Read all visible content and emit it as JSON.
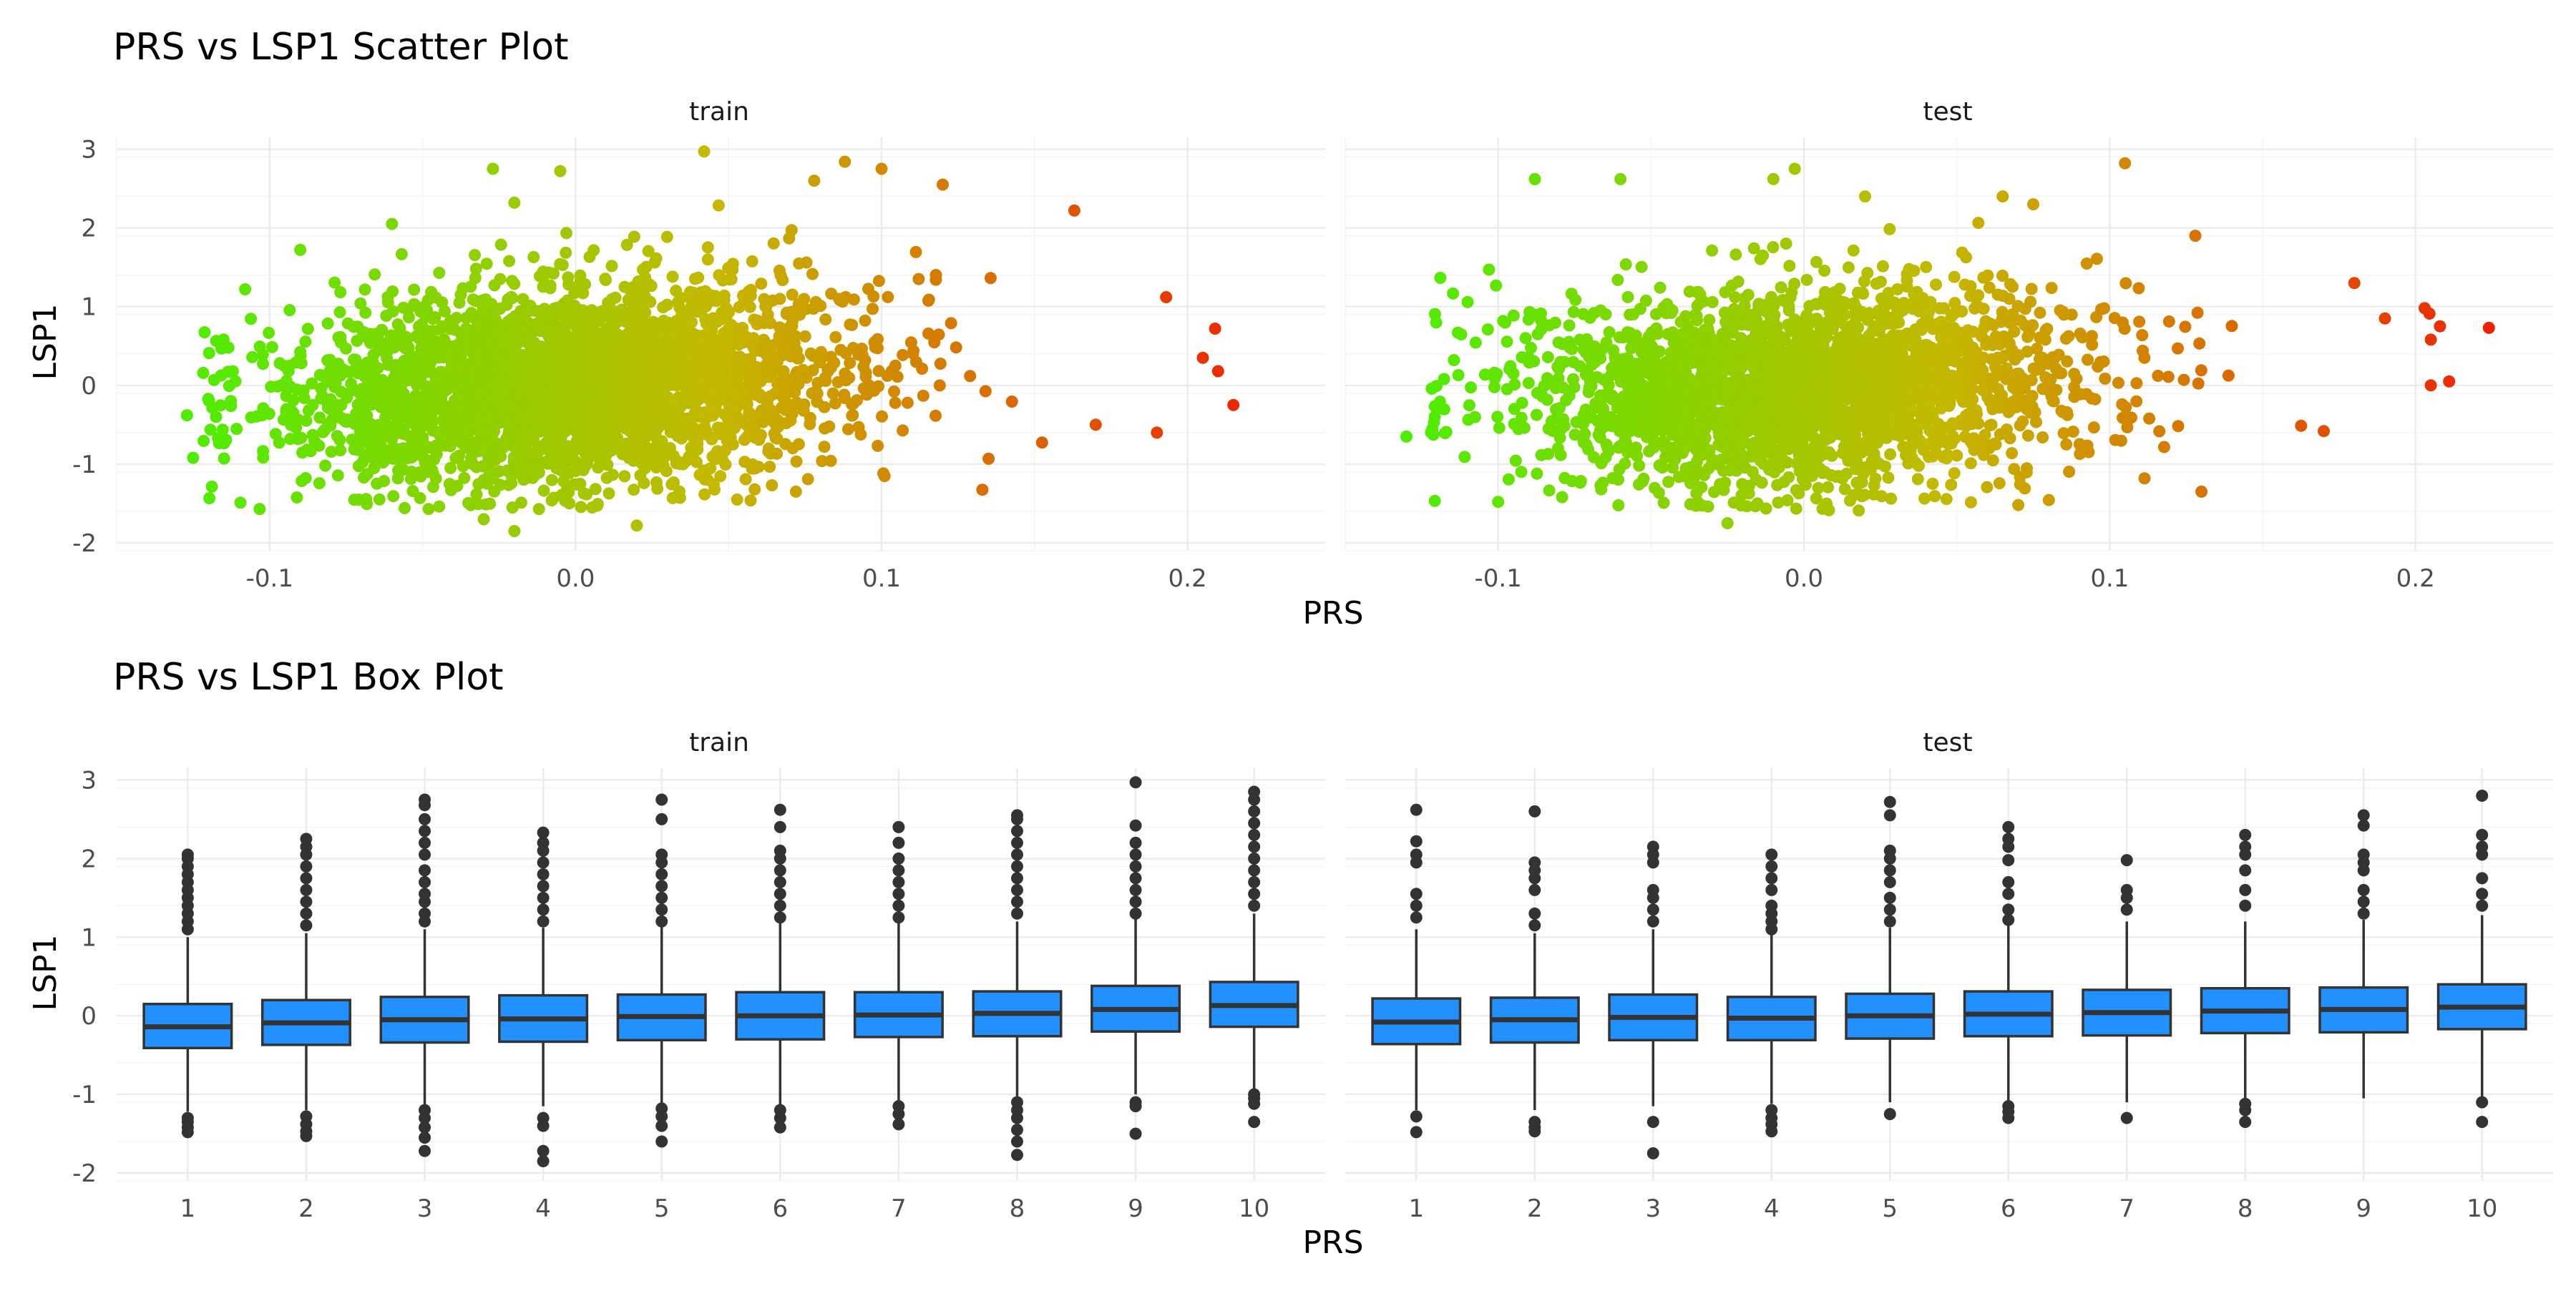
{
  "colors": {
    "low": "#4cee00",
    "mid": "#c4b800",
    "high": "#ee2200",
    "box_fill": "#2291ff",
    "box_line": "#333333",
    "outlier": "#333333"
  },
  "chart_data": [
    {
      "type": "scatter",
      "title": "PRS vs LSP1 Scatter Plot",
      "xlabel": "PRS",
      "ylabel": "LSP1",
      "facets": [
        "train",
        "test"
      ],
      "xlim": [
        -0.15,
        0.245
      ],
      "ylim": [
        -2.1,
        3.15
      ],
      "x_ticks": [
        -0.1,
        0.0,
        0.1,
        0.2
      ],
      "x_tick_labels": [
        "-0.1",
        "0.0",
        "0.1",
        "0.2"
      ],
      "y_ticks": [
        -2,
        -1,
        0,
        1,
        2,
        3
      ],
      "y_tick_labels": [
        "-2",
        "-1",
        "0",
        "1",
        "2",
        "3"
      ],
      "color_by": "x",
      "grid": true,
      "legend": "none",
      "series": [
        {
          "facet": "train",
          "x_center": 0.0,
          "x_sd": 0.045,
          "n_points": 3200,
          "trend_slope": 2.0,
          "y_sd": 0.55,
          "extremes": [
            [
              -0.127,
              -0.38
            ],
            [
              -0.125,
              -0.92
            ],
            [
              -0.108,
              1.22
            ],
            [
              -0.09,
              1.72
            ],
            [
              -0.06,
              2.05
            ],
            [
              -0.027,
              2.75
            ],
            [
              -0.005,
              2.72
            ],
            [
              0.042,
              2.97
            ],
            [
              0.078,
              2.6
            ],
            [
              0.088,
              2.84
            ],
            [
              0.1,
              2.75
            ],
            [
              0.12,
              2.55
            ],
            [
              0.163,
              2.22
            ],
            [
              0.193,
              1.12
            ],
            [
              0.209,
              0.72
            ],
            [
              0.21,
              0.18
            ],
            [
              0.215,
              -0.25
            ],
            [
              0.205,
              0.35
            ],
            [
              0.19,
              -0.6
            ],
            [
              0.17,
              -0.5
            ],
            [
              -0.02,
              -1.85
            ],
            [
              -0.03,
              -1.7
            ],
            [
              0.02,
              -1.78
            ],
            [
              0.072,
              -1.35
            ]
          ]
        },
        {
          "facet": "test",
          "x_center": 0.0,
          "x_sd": 0.045,
          "n_points": 2600,
          "trend_slope": 1.9,
          "y_sd": 0.55,
          "extremes": [
            [
              -0.13,
              -0.65
            ],
            [
              -0.113,
              0.13
            ],
            [
              -0.103,
              1.47
            ],
            [
              -0.1,
              -1.48
            ],
            [
              -0.088,
              2.62
            ],
            [
              -0.06,
              2.62
            ],
            [
              -0.01,
              2.62
            ],
            [
              -0.003,
              2.75
            ],
            [
              0.02,
              2.4
            ],
            [
              0.065,
              2.4
            ],
            [
              0.075,
              2.3
            ],
            [
              0.105,
              2.82
            ],
            [
              0.128,
              1.9
            ],
            [
              0.18,
              1.3
            ],
            [
              0.19,
              0.85
            ],
            [
              0.203,
              0.98
            ],
            [
              0.205,
              0.58
            ],
            [
              0.208,
              0.75
            ],
            [
              0.211,
              0.05
            ],
            [
              0.224,
              0.73
            ],
            [
              0.205,
              0.0
            ],
            [
              0.17,
              -0.58
            ],
            [
              0.13,
              -1.35
            ],
            [
              -0.025,
              -1.75
            ]
          ]
        }
      ]
    },
    {
      "type": "box",
      "title": "PRS vs LSP1 Box Plot",
      "xlabel": "PRS",
      "ylabel": "LSP1",
      "facets": [
        "train",
        "test"
      ],
      "categories": [
        "1",
        "2",
        "3",
        "4",
        "5",
        "6",
        "7",
        "8",
        "9",
        "10"
      ],
      "ylim": [
        -2.1,
        3.15
      ],
      "y_ticks": [
        -2,
        -1,
        0,
        1,
        2,
        3
      ],
      "y_tick_labels": [
        "-2",
        "-1",
        "0",
        "1",
        "2",
        "3"
      ],
      "grid": true,
      "legend": "none",
      "series": [
        {
          "facet": "train",
          "boxes": [
            {
              "q1": -0.41,
              "median": -0.14,
              "q3": 0.15,
              "lower": -1.22,
              "upper": 1.0,
              "outliers_low": [
                -1.3,
                -1.35,
                -1.42,
                -1.48
              ],
              "outliers_high": [
                1.1,
                1.2,
                1.3,
                1.4,
                1.5,
                1.6,
                1.7,
                1.8,
                1.9,
                2.0,
                2.05
              ]
            },
            {
              "q1": -0.37,
              "median": -0.09,
              "q3": 0.2,
              "lower": -1.2,
              "upper": 1.05,
              "outliers_low": [
                -1.28,
                -1.38,
                -1.47,
                -1.53
              ],
              "outliers_high": [
                1.15,
                1.3,
                1.45,
                1.6,
                1.75,
                1.9,
                2.05,
                2.15,
                2.25
              ]
            },
            {
              "q1": -0.34,
              "median": -0.05,
              "q3": 0.24,
              "lower": -1.15,
              "upper": 1.1,
              "outliers_low": [
                -1.2,
                -1.3,
                -1.42,
                -1.55,
                -1.72
              ],
              "outliers_high": [
                1.2,
                1.3,
                1.45,
                1.55,
                1.7,
                1.85,
                2.05,
                2.2,
                2.35,
                2.5,
                2.68,
                2.75
              ]
            },
            {
              "q1": -0.33,
              "median": -0.04,
              "q3": 0.26,
              "lower": -1.15,
              "upper": 1.12,
              "outliers_low": [
                -1.3,
                -1.4,
                -1.72,
                -1.85
              ],
              "outliers_high": [
                1.2,
                1.35,
                1.5,
                1.65,
                1.8,
                1.95,
                2.1,
                2.2,
                2.33
              ]
            },
            {
              "q1": -0.31,
              "median": -0.01,
              "q3": 0.27,
              "lower": -1.12,
              "upper": 1.15,
              "outliers_low": [
                -1.18,
                -1.28,
                -1.4,
                -1.6
              ],
              "outliers_high": [
                1.2,
                1.35,
                1.5,
                1.65,
                1.8,
                1.95,
                2.05,
                2.5,
                2.75
              ]
            },
            {
              "q1": -0.3,
              "median": 0.0,
              "q3": 0.3,
              "lower": -1.15,
              "upper": 1.18,
              "outliers_low": [
                -1.2,
                -1.3,
                -1.42
              ],
              "outliers_high": [
                1.25,
                1.4,
                1.55,
                1.7,
                1.85,
                2.0,
                2.1,
                2.4,
                2.62
              ]
            },
            {
              "q1": -0.27,
              "median": 0.01,
              "q3": 0.3,
              "lower": -1.1,
              "upper": 1.2,
              "outliers_low": [
                -1.15,
                -1.25,
                -1.38
              ],
              "outliers_high": [
                1.25,
                1.4,
                1.55,
                1.7,
                1.85,
                2.0,
                2.2,
                2.4
              ]
            },
            {
              "q1": -0.26,
              "median": 0.03,
              "q3": 0.31,
              "lower": -1.05,
              "upper": 1.2,
              "outliers_low": [
                -1.1,
                -1.2,
                -1.3,
                -1.45,
                -1.6,
                -1.77
              ],
              "outliers_high": [
                1.3,
                1.45,
                1.6,
                1.75,
                1.9,
                2.05,
                2.2,
                2.35,
                2.5,
                2.55
              ]
            },
            {
              "q1": -0.2,
              "median": 0.08,
              "q3": 0.38,
              "lower": -1.0,
              "upper": 1.25,
              "outliers_low": [
                -1.1,
                -1.15,
                -1.5
              ],
              "outliers_high": [
                1.3,
                1.45,
                1.6,
                1.75,
                1.9,
                2.05,
                2.2,
                2.42,
                2.97
              ]
            },
            {
              "q1": -0.14,
              "median": 0.13,
              "q3": 0.43,
              "lower": -0.95,
              "upper": 1.3,
              "outliers_low": [
                -1.0,
                -1.05,
                -1.12,
                -1.35
              ],
              "outliers_high": [
                1.4,
                1.55,
                1.7,
                1.85,
                2.0,
                2.15,
                2.3,
                2.45,
                2.6,
                2.75,
                2.85
              ]
            }
          ]
        },
        {
          "facet": "test",
          "boxes": [
            {
              "q1": -0.36,
              "median": -0.08,
              "q3": 0.22,
              "lower": -1.2,
              "upper": 1.1,
              "outliers_low": [
                -1.28,
                -1.48
              ],
              "outliers_high": [
                1.25,
                1.4,
                1.55,
                1.95,
                2.05,
                2.22,
                2.62
              ]
            },
            {
              "q1": -0.34,
              "median": -0.05,
              "q3": 0.23,
              "lower": -1.2,
              "upper": 1.05,
              "outliers_low": [
                -1.35,
                -1.42,
                -1.47
              ],
              "outliers_high": [
                1.15,
                1.3,
                1.6,
                1.75,
                1.85,
                1.95,
                2.6
              ]
            },
            {
              "q1": -0.31,
              "median": -0.02,
              "q3": 0.27,
              "lower": -1.15,
              "upper": 1.1,
              "outliers_low": [
                -1.35,
                -1.75
              ],
              "outliers_high": [
                1.2,
                1.35,
                1.5,
                1.6,
                1.95,
                2.05,
                2.15
              ]
            },
            {
              "q1": -0.31,
              "median": -0.03,
              "q3": 0.24,
              "lower": -1.12,
              "upper": 1.05,
              "outliers_low": [
                -1.2,
                -1.3,
                -1.38,
                -1.47
              ],
              "outliers_high": [
                1.1,
                1.2,
                1.3,
                1.4,
                1.6,
                1.75,
                1.9,
                2.05
              ]
            },
            {
              "q1": -0.29,
              "median": 0.0,
              "q3": 0.28,
              "lower": -1.1,
              "upper": 1.12,
              "outliers_low": [
                -1.25
              ],
              "outliers_high": [
                1.2,
                1.35,
                1.5,
                1.7,
                1.85,
                2.0,
                2.1,
                2.55,
                2.72
              ]
            },
            {
              "q1": -0.26,
              "median": 0.02,
              "q3": 0.31,
              "lower": -1.08,
              "upper": 1.15,
              "outliers_low": [
                -1.15,
                -1.22,
                -1.3
              ],
              "outliers_high": [
                1.22,
                1.35,
                1.55,
                1.7,
                1.98,
                2.15,
                2.25,
                2.4
              ]
            },
            {
              "q1": -0.25,
              "median": 0.04,
              "q3": 0.33,
              "lower": -1.1,
              "upper": 1.2,
              "outliers_low": [
                -1.3
              ],
              "outliers_high": [
                1.35,
                1.5,
                1.6,
                1.98
              ]
            },
            {
              "q1": -0.22,
              "median": 0.06,
              "q3": 0.35,
              "lower": -1.05,
              "upper": 1.2,
              "outliers_low": [
                -1.12,
                -1.2,
                -1.35
              ],
              "outliers_high": [
                1.4,
                1.6,
                1.85,
                2.05,
                2.15,
                2.3
              ]
            },
            {
              "q1": -0.21,
              "median": 0.08,
              "q3": 0.36,
              "lower": -1.05,
              "upper": 1.22,
              "outliers_low": [],
              "outliers_high": [
                1.3,
                1.45,
                1.6,
                1.85,
                1.95,
                2.05,
                2.42,
                2.55
              ]
            },
            {
              "q1": -0.17,
              "median": 0.11,
              "q3": 0.4,
              "lower": -1.08,
              "upper": 1.28,
              "outliers_low": [
                -1.1,
                -1.35
              ],
              "outliers_high": [
                1.4,
                1.55,
                1.75,
                2.05,
                2.15,
                2.3,
                2.8
              ]
            }
          ]
        }
      ]
    }
  ]
}
